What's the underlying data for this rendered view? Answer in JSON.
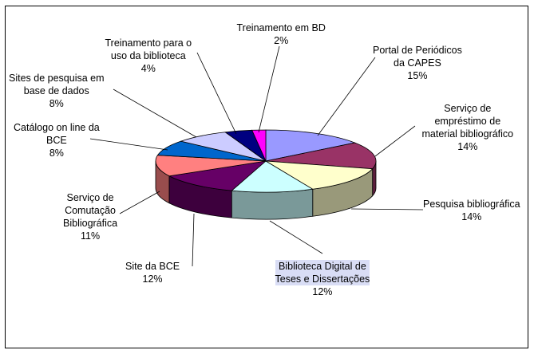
{
  "chart_data": {
    "type": "pie",
    "slices": [
      {
        "label": "Portal de Periódicos da CAPES",
        "lines": [
          "Portal de Periódicos",
          "da CAPES"
        ],
        "pct": "15%",
        "value": 15,
        "color": "#9999ff"
      },
      {
        "label": "Serviço de empréstimo de material bibliográfico",
        "lines": [
          "Serviço de",
          "empréstimo de",
          "material bibliográfico"
        ],
        "pct": "14%",
        "value": 14,
        "color": "#993366"
      },
      {
        "label": "Pesquisa bibliográfica",
        "lines": [
          "Pesquisa bibliográfica"
        ],
        "pct": "14%",
        "value": 14,
        "color": "#ffffcc"
      },
      {
        "label": "Biblioteca Digital de Teses e Dissertações",
        "lines": [
          "Biblioteca Digital de",
          "Teses e Dissertações"
        ],
        "pct": "12%",
        "value": 12,
        "color": "#ccffff",
        "highlight": true
      },
      {
        "label": "Site da BCE",
        "lines": [
          "Site da BCE"
        ],
        "pct": "12%",
        "value": 12,
        "color": "#660066"
      },
      {
        "label": "Serviço de Comutação Bibliográfica",
        "lines": [
          "Serviço de",
          "Comutação",
          "Bibliográfica"
        ],
        "pct": "11%",
        "value": 11,
        "color": "#ff8080"
      },
      {
        "label": "Catálogo on line da BCE",
        "lines": [
          "Catálogo on line da",
          "BCE"
        ],
        "pct": "8%",
        "value": 8,
        "color": "#0066cc"
      },
      {
        "label": "Sites de pesquisa em base de dados",
        "lines": [
          "Sites de pesquisa em",
          "base de dados"
        ],
        "pct": "8%",
        "value": 8,
        "color": "#ccccff"
      },
      {
        "label": "Treinamento para o uso da biblioteca",
        "lines": [
          "Treinamento para o",
          "uso da biblioteca"
        ],
        "pct": "4%",
        "value": 4,
        "color": "#000080"
      },
      {
        "label": "Treinamento em BD",
        "lines": [
          "Treinamento em BD"
        ],
        "pct": "2%",
        "value": 2,
        "color": "#ff00ff"
      }
    ]
  }
}
